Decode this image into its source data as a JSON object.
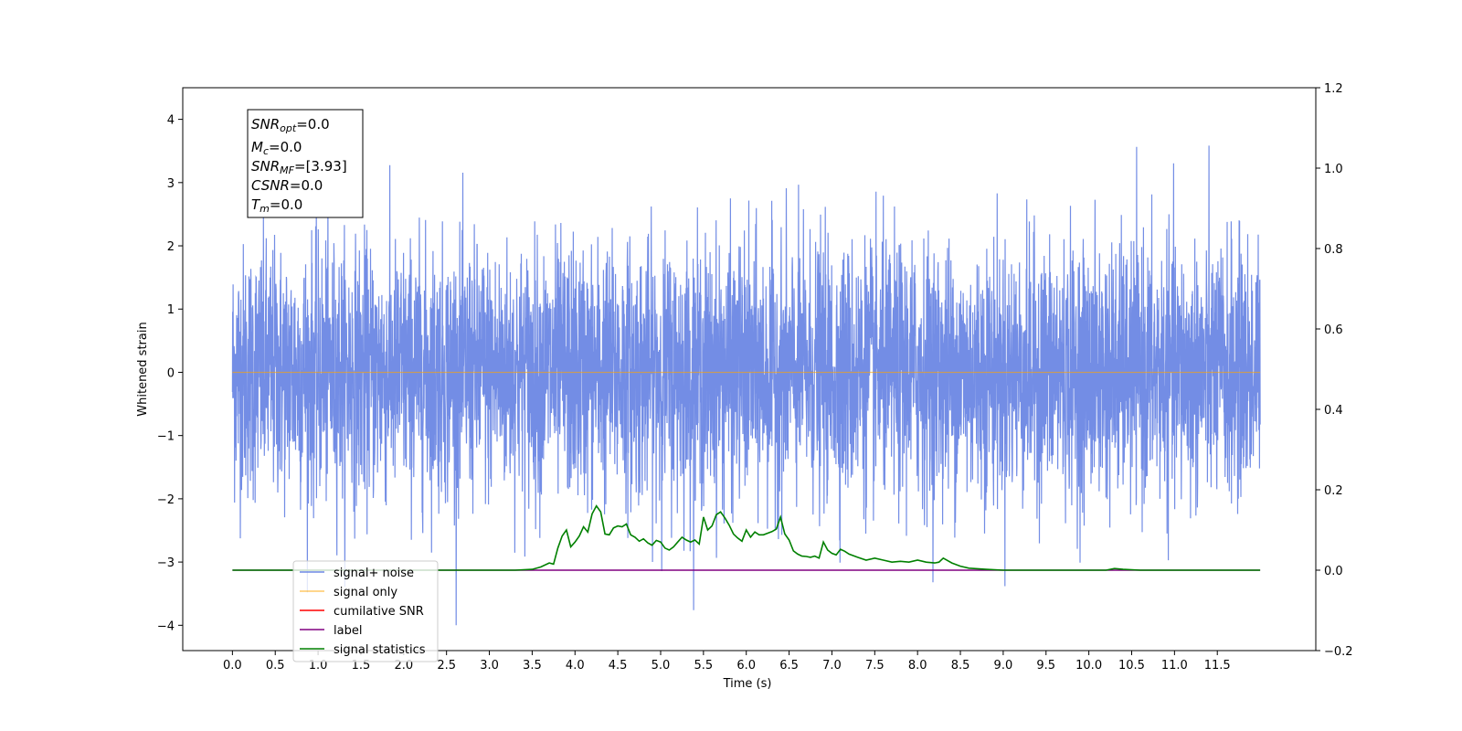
{
  "chart_data": {
    "type": "line",
    "xlabel": "Time (s)",
    "ylabel": "Whitened strain",
    "xlim": [
      -0.58,
      12.65
    ],
    "ylim": [
      -4.4,
      4.5
    ],
    "y2lim": [
      -0.2,
      1.2
    ],
    "x_ticks": [
      "0.0",
      "0.5",
      "1.0",
      "1.5",
      "2.0",
      "2.5",
      "3.0",
      "3.5",
      "4.0",
      "4.5",
      "5.0",
      "5.5",
      "6.0",
      "6.5",
      "7.0",
      "7.5",
      "8.0",
      "8.5",
      "9.0",
      "9.5",
      "10.0",
      "10.5",
      "11.0",
      "11.5"
    ],
    "y_ticks": [
      "4",
      "3",
      "2",
      "1",
      "0",
      "−1",
      "−2",
      "−3",
      "−4"
    ],
    "y2_ticks": [
      "1.2",
      "1.0",
      "0.8",
      "0.6",
      "0.4",
      "0.2",
      "0.0",
      "−0.2"
    ],
    "grid": false,
    "legend_position": "lower-left",
    "colors": {
      "noise": "#6b87e4",
      "signal": "#ffa500",
      "snr": "#ff0000",
      "label": "#800080",
      "stats": "#008000"
    },
    "annotation": {
      "snr_opt": {
        "sym": "SNR",
        "sub": "opt",
        "value": "=0.0"
      },
      "mc": {
        "sym": "M",
        "sub": "c",
        "value": "=0.0"
      },
      "snr_mf": {
        "sym": "SNR",
        "sub": "MF",
        "value": "=[3.93]"
      },
      "csnr": {
        "sym": "CSNR",
        "value": "=0.0"
      },
      "tm": {
        "sym": "T",
        "sub": "m",
        "value": "=0.0"
      }
    },
    "legend": [
      "signal+ noise",
      "signal only",
      "cumilative SNR",
      "label",
      "signal statistics"
    ],
    "series": [
      {
        "name": "signal+ noise",
        "axis": "left",
        "description_range": [
          -4.0,
          4.1
        ],
        "t_range": [
          0.0,
          12.0
        ]
      },
      {
        "name": "signal only",
        "axis": "left",
        "x": [
          0.0,
          12.0
        ],
        "values": [
          0.0,
          0.0
        ]
      },
      {
        "name": "label",
        "axis": "right",
        "x": [
          0.0,
          12.0
        ],
        "values": [
          0.0,
          0.0
        ]
      },
      {
        "name": "signal statistics",
        "axis": "right",
        "x": [
          0.0,
          3.3,
          3.5,
          3.6,
          3.7,
          3.75,
          3.8,
          3.85,
          3.9,
          3.95,
          4.0,
          4.05,
          4.1,
          4.15,
          4.2,
          4.25,
          4.3,
          4.35,
          4.4,
          4.45,
          4.5,
          4.55,
          4.6,
          4.65,
          4.7,
          4.75,
          4.8,
          4.85,
          4.9,
          4.95,
          5.0,
          5.05,
          5.1,
          5.15,
          5.2,
          5.25,
          5.3,
          5.35,
          5.4,
          5.45,
          5.5,
          5.55,
          5.6,
          5.65,
          5.7,
          5.75,
          5.8,
          5.85,
          5.9,
          5.95,
          6.0,
          6.05,
          6.1,
          6.15,
          6.2,
          6.25,
          6.3,
          6.35,
          6.4,
          6.45,
          6.5,
          6.55,
          6.6,
          6.65,
          6.7,
          6.75,
          6.8,
          6.85,
          6.9,
          6.95,
          7.0,
          7.05,
          7.1,
          7.15,
          7.2,
          7.3,
          7.4,
          7.5,
          7.6,
          7.7,
          7.8,
          7.9,
          8.0,
          8.1,
          8.2,
          8.25,
          8.3,
          8.4,
          8.5,
          8.6,
          8.8,
          9.0,
          10.2,
          10.3,
          10.4,
          10.6,
          12.0
        ],
        "values": [
          0.0,
          0.0,
          0.002,
          0.008,
          0.018,
          0.015,
          0.055,
          0.085,
          0.1,
          0.058,
          0.07,
          0.085,
          0.108,
          0.095,
          0.14,
          0.16,
          0.145,
          0.09,
          0.088,
          0.105,
          0.11,
          0.108,
          0.115,
          0.088,
          0.082,
          0.072,
          0.078,
          0.068,
          0.062,
          0.074,
          0.07,
          0.055,
          0.05,
          0.058,
          0.07,
          0.082,
          0.075,
          0.07,
          0.075,
          0.065,
          0.132,
          0.1,
          0.11,
          0.138,
          0.145,
          0.13,
          0.112,
          0.09,
          0.08,
          0.072,
          0.1,
          0.082,
          0.095,
          0.088,
          0.088,
          0.092,
          0.096,
          0.102,
          0.132,
          0.09,
          0.075,
          0.048,
          0.04,
          0.035,
          0.034,
          0.032,
          0.035,
          0.03,
          0.07,
          0.05,
          0.042,
          0.038,
          0.052,
          0.047,
          0.04,
          0.032,
          0.025,
          0.03,
          0.025,
          0.02,
          0.022,
          0.02,
          0.025,
          0.02,
          0.018,
          0.02,
          0.03,
          0.018,
          0.01,
          0.005,
          0.002,
          0.0,
          0.0,
          0.004,
          0.002,
          0.0,
          0.0
        ]
      }
    ]
  }
}
